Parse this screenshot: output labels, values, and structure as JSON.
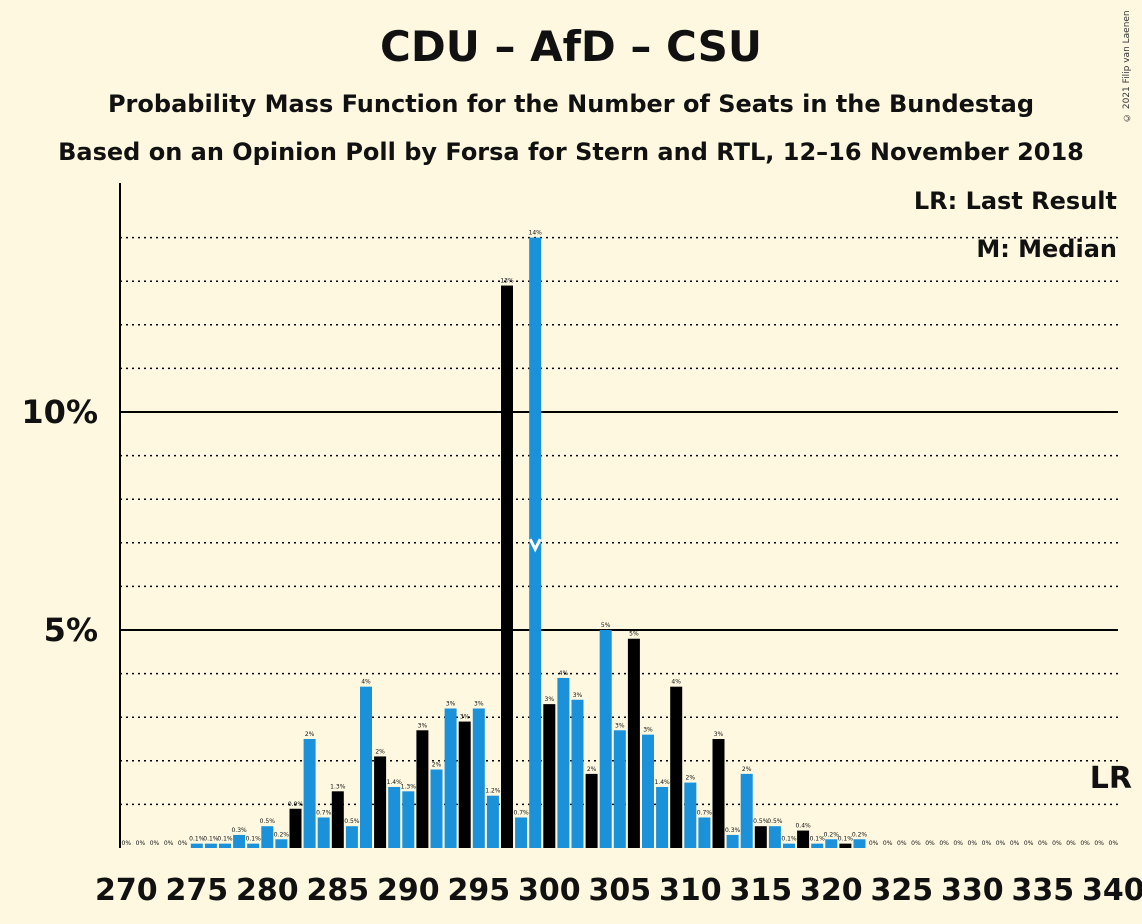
{
  "title": "CDU – AfD – CSU",
  "subtitle": "Probability Mass Function for the Number of Seats in the Bundestag",
  "subtitle2": "Based on an Opinion Poll by Forsa for Stern and RTL, 12–16 November 2018",
  "copyright": "© 2021 Filip van Laenen",
  "legend": {
    "lr": "LR: Last Result",
    "median": "M: Median"
  },
  "lr_label": "LR",
  "colors": {
    "background": "#fef8e0",
    "blue": "#1a91d9",
    "black": "#000000"
  },
  "chart_data": {
    "type": "bar",
    "xlabel": "",
    "ylabel": "",
    "ylim": [
      0,
      15
    ],
    "xlim": [
      270,
      340
    ],
    "y_ticks": [
      {
        "value": 5,
        "label": "5%"
      },
      {
        "value": 10,
        "label": "10%"
      }
    ],
    "x_ticks": [
      270,
      275,
      280,
      285,
      290,
      295,
      300,
      305,
      310,
      315,
      320,
      325,
      330,
      335,
      340
    ],
    "median_seat": 299,
    "last_result_seat": 340,
    "bars": [
      {
        "seat": 270,
        "value": 0.0,
        "label": "0%",
        "color": "blue"
      },
      {
        "seat": 271,
        "value": 0.0,
        "label": "0%",
        "color": "blue"
      },
      {
        "seat": 272,
        "value": 0.0,
        "label": "0%",
        "color": "blue"
      },
      {
        "seat": 273,
        "value": 0.0,
        "label": "0%",
        "color": "blue"
      },
      {
        "seat": 274,
        "value": 0.0,
        "label": "0%",
        "color": "blue"
      },
      {
        "seat": 275,
        "value": 0.1,
        "label": "0.1%",
        "color": "blue"
      },
      {
        "seat": 276,
        "value": 0.1,
        "label": "0.1%",
        "color": "blue"
      },
      {
        "seat": 277,
        "value": 0.1,
        "label": "0.1%",
        "color": "blue"
      },
      {
        "seat": 278,
        "value": 0.3,
        "label": "0.3%",
        "color": "blue"
      },
      {
        "seat": 279,
        "value": 0.1,
        "label": "0.1%",
        "color": "blue"
      },
      {
        "seat": 280,
        "value": 0.5,
        "label": "0.5%",
        "color": "blue"
      },
      {
        "seat": 281,
        "value": 0.2,
        "label": "0.2%",
        "color": "blue"
      },
      {
        "seat": 282,
        "value": 0.9,
        "label": "0.9%",
        "color": "black"
      },
      {
        "seat": 283,
        "value": 2.5,
        "label": "2%",
        "color": "blue"
      },
      {
        "seat": 284,
        "value": 0.7,
        "label": "0.7%",
        "color": "blue"
      },
      {
        "seat": 285,
        "value": 1.3,
        "label": "1.3%",
        "color": "black"
      },
      {
        "seat": 286,
        "value": 0.5,
        "label": "0.5%",
        "color": "blue"
      },
      {
        "seat": 287,
        "value": 3.7,
        "label": "4%",
        "color": "blue"
      },
      {
        "seat": 288,
        "value": 2.1,
        "label": "2%",
        "color": "black"
      },
      {
        "seat": 289,
        "value": 1.4,
        "label": "1.4%",
        "color": "blue"
      },
      {
        "seat": 290,
        "value": 1.3,
        "label": "1.3%",
        "color": "blue"
      },
      {
        "seat": 291,
        "value": 2.7,
        "label": "3%",
        "color": "black"
      },
      {
        "seat": 292,
        "value": 1.8,
        "label": "2%",
        "color": "blue"
      },
      {
        "seat": 293,
        "value": 3.2,
        "label": "3%",
        "color": "blue"
      },
      {
        "seat": 294,
        "value": 2.9,
        "label": "3%",
        "color": "black"
      },
      {
        "seat": 295,
        "value": 3.2,
        "label": "3%",
        "color": "blue"
      },
      {
        "seat": 296,
        "value": 1.2,
        "label": "1.2%",
        "color": "blue"
      },
      {
        "seat": 297,
        "value": 12.9,
        "label": "13%",
        "color": "black"
      },
      {
        "seat": 298,
        "value": 0.7,
        "label": "0.7%",
        "color": "blue"
      },
      {
        "seat": 299,
        "value": 14.0,
        "label": "14%",
        "color": "blue"
      },
      {
        "seat": 300,
        "value": 3.3,
        "label": "3%",
        "color": "black"
      },
      {
        "seat": 301,
        "value": 3.9,
        "label": "4%",
        "color": "blue"
      },
      {
        "seat": 302,
        "value": 3.4,
        "label": "3%",
        "color": "blue"
      },
      {
        "seat": 303,
        "value": 1.7,
        "label": "2%",
        "color": "black"
      },
      {
        "seat": 304,
        "value": 5.0,
        "label": "5%",
        "color": "blue"
      },
      {
        "seat": 305,
        "value": 2.7,
        "label": "3%",
        "color": "blue"
      },
      {
        "seat": 306,
        "value": 4.8,
        "label": "5%",
        "color": "black"
      },
      {
        "seat": 307,
        "value": 2.6,
        "label": "3%",
        "color": "blue"
      },
      {
        "seat": 308,
        "value": 1.4,
        "label": "1.4%",
        "color": "blue"
      },
      {
        "seat": 309,
        "value": 3.7,
        "label": "4%",
        "color": "black"
      },
      {
        "seat": 310,
        "value": 1.5,
        "label": "2%",
        "color": "blue"
      },
      {
        "seat": 311,
        "value": 0.7,
        "label": "0.7%",
        "color": "blue"
      },
      {
        "seat": 312,
        "value": 2.5,
        "label": "3%",
        "color": "black"
      },
      {
        "seat": 313,
        "value": 0.3,
        "label": "0.3%",
        "color": "blue"
      },
      {
        "seat": 314,
        "value": 1.7,
        "label": "2%",
        "color": "blue"
      },
      {
        "seat": 315,
        "value": 0.5,
        "label": "0.5%",
        "color": "black"
      },
      {
        "seat": 316,
        "value": 0.5,
        "label": "0.5%",
        "color": "blue"
      },
      {
        "seat": 317,
        "value": 0.1,
        "label": "0.1%",
        "color": "blue"
      },
      {
        "seat": 318,
        "value": 0.4,
        "label": "0.4%",
        "color": "black"
      },
      {
        "seat": 319,
        "value": 0.1,
        "label": "0.1%",
        "color": "blue"
      },
      {
        "seat": 320,
        "value": 0.2,
        "label": "0.2%",
        "color": "blue"
      },
      {
        "seat": 321,
        "value": 0.1,
        "label": "0.1%",
        "color": "black"
      },
      {
        "seat": 322,
        "value": 0.2,
        "label": "0.2%",
        "color": "blue"
      },
      {
        "seat": 323,
        "value": 0.0,
        "label": "0%",
        "color": "blue"
      },
      {
        "seat": 324,
        "value": 0.0,
        "label": "0%",
        "color": "blue"
      },
      {
        "seat": 325,
        "value": 0.0,
        "label": "0%",
        "color": "blue"
      },
      {
        "seat": 326,
        "value": 0.0,
        "label": "0%",
        "color": "blue"
      },
      {
        "seat": 327,
        "value": 0.0,
        "label": "0%",
        "color": "blue"
      },
      {
        "seat": 328,
        "value": 0.0,
        "label": "0%",
        "color": "blue"
      },
      {
        "seat": 329,
        "value": 0.0,
        "label": "0%",
        "color": "blue"
      },
      {
        "seat": 330,
        "value": 0.0,
        "label": "0%",
        "color": "blue"
      },
      {
        "seat": 331,
        "value": 0.0,
        "label": "0%",
        "color": "blue"
      },
      {
        "seat": 332,
        "value": 0.0,
        "label": "0%",
        "color": "blue"
      },
      {
        "seat": 333,
        "value": 0.0,
        "label": "0%",
        "color": "blue"
      },
      {
        "seat": 334,
        "value": 0.0,
        "label": "0%",
        "color": "blue"
      },
      {
        "seat": 335,
        "value": 0.0,
        "label": "0%",
        "color": "blue"
      },
      {
        "seat": 336,
        "value": 0.0,
        "label": "0%",
        "color": "blue"
      },
      {
        "seat": 337,
        "value": 0.0,
        "label": "0%",
        "color": "blue"
      },
      {
        "seat": 338,
        "value": 0.0,
        "label": "0%",
        "color": "blue"
      },
      {
        "seat": 339,
        "value": 0.0,
        "label": "0%",
        "color": "blue"
      },
      {
        "seat": 340,
        "value": 0.0,
        "label": "0%",
        "color": "blue"
      }
    ]
  }
}
